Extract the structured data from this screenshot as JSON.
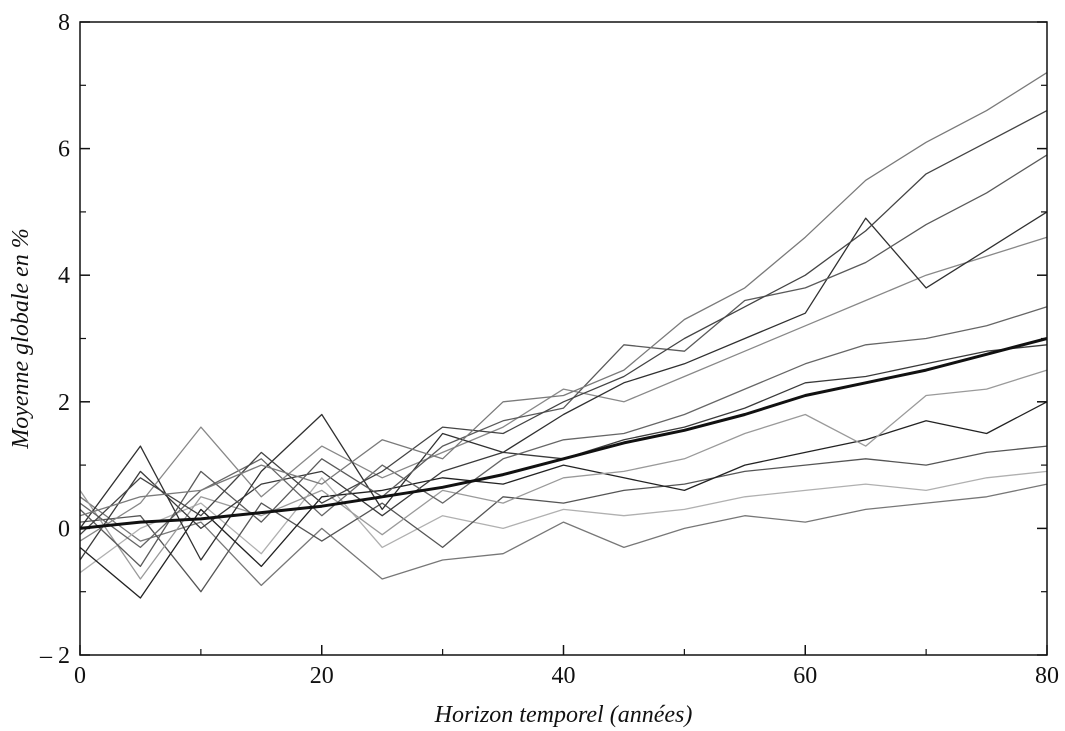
{
  "chart_data": {
    "type": "line",
    "title": "",
    "xlabel": "Horizon temporel (années)",
    "ylabel": "Moyenne globale en %",
    "xlim": [
      0,
      80
    ],
    "ylim": [
      -2,
      8
    ],
    "grid": false,
    "legend": "none",
    "x_ticks": [
      {
        "value": 0,
        "label": "0"
      },
      {
        "value": 20,
        "label": "20"
      },
      {
        "value": 40,
        "label": "40"
      },
      {
        "value": 60,
        "label": "60"
      },
      {
        "value": 80,
        "label": "80"
      }
    ],
    "y_ticks": [
      {
        "value": -2,
        "label": "– 2"
      },
      {
        "value": 0,
        "label": "0"
      },
      {
        "value": 2,
        "label": "2"
      },
      {
        "value": 4,
        "label": "4"
      },
      {
        "value": 6,
        "label": "6"
      },
      {
        "value": 8,
        "label": "8"
      }
    ],
    "x": [
      0,
      5,
      10,
      15,
      20,
      25,
      30,
      35,
      40,
      45,
      50,
      55,
      60,
      65,
      70,
      75,
      80
    ],
    "series": [
      {
        "color": "#111111",
        "width": 3,
        "values": [
          0.0,
          0.1,
          0.15,
          0.25,
          0.35,
          0.5,
          0.65,
          0.85,
          1.1,
          1.35,
          1.55,
          1.8,
          2.1,
          2.3,
          2.5,
          2.75,
          3.0
        ]
      },
      {
        "color": "#7a7a7a",
        "width": 1.3,
        "values": [
          0.2,
          0.5,
          0.6,
          1.0,
          0.7,
          1.4,
          1.1,
          2.0,
          2.1,
          2.5,
          3.3,
          3.8,
          4.6,
          5.5,
          6.1,
          6.6,
          7.2
        ]
      },
      {
        "color": "#444444",
        "width": 1.3,
        "values": [
          -0.1,
          0.8,
          0.2,
          1.2,
          0.4,
          0.9,
          1.6,
          1.5,
          2.0,
          2.4,
          3.0,
          3.5,
          4.0,
          4.7,
          5.6,
          6.1,
          6.6
        ]
      },
      {
        "color": "#5a5a5a",
        "width": 1.3,
        "values": [
          0.3,
          -0.6,
          0.9,
          0.1,
          1.1,
          0.5,
          1.3,
          1.7,
          1.9,
          2.9,
          2.8,
          3.6,
          3.8,
          4.2,
          4.8,
          5.3,
          5.9
        ]
      },
      {
        "color": "#303030",
        "width": 1.3,
        "values": [
          0.0,
          1.3,
          -0.5,
          0.9,
          1.8,
          0.3,
          1.5,
          1.2,
          1.8,
          2.3,
          2.6,
          3.0,
          3.4,
          4.9,
          3.8,
          4.4,
          5.0
        ]
      },
      {
        "color": "#888888",
        "width": 1.3,
        "values": [
          -0.2,
          0.4,
          1.6,
          0.5,
          1.3,
          0.8,
          1.2,
          1.6,
          2.2,
          2.0,
          2.4,
          2.8,
          3.2,
          3.6,
          4.0,
          4.3,
          4.6
        ]
      },
      {
        "color": "#666666",
        "width": 1.3,
        "values": [
          0.4,
          -0.3,
          0.6,
          1.1,
          0.2,
          1.0,
          0.4,
          1.1,
          1.4,
          1.5,
          1.8,
          2.2,
          2.6,
          2.9,
          3.0,
          3.2,
          3.5
        ]
      },
      {
        "color": "#3a3a3a",
        "width": 1.3,
        "values": [
          -0.5,
          0.9,
          0.0,
          0.7,
          0.9,
          0.2,
          0.9,
          1.2,
          1.1,
          1.4,
          1.6,
          1.9,
          2.3,
          2.4,
          2.6,
          2.8,
          2.9
        ]
      },
      {
        "color": "#9a9a9a",
        "width": 1.3,
        "values": [
          0.6,
          -0.8,
          0.5,
          0.2,
          0.6,
          -0.1,
          0.6,
          0.4,
          0.8,
          0.9,
          1.1,
          1.5,
          1.8,
          1.3,
          2.1,
          2.2,
          2.5
        ]
      },
      {
        "color": "#222222",
        "width": 1.3,
        "values": [
          -0.3,
          -1.1,
          0.3,
          -0.6,
          0.5,
          0.6,
          0.8,
          0.7,
          1.0,
          0.8,
          0.6,
          1.0,
          1.2,
          1.4,
          1.7,
          1.5,
          2.0
        ]
      },
      {
        "color": "#555555",
        "width": 1.3,
        "values": [
          0.1,
          0.2,
          -1.0,
          0.4,
          -0.2,
          0.4,
          -0.3,
          0.5,
          0.4,
          0.6,
          0.7,
          0.9,
          1.0,
          1.1,
          1.0,
          1.2,
          1.3
        ]
      },
      {
        "color": "#b0b0b0",
        "width": 1.3,
        "values": [
          -0.7,
          0.0,
          0.4,
          -0.4,
          0.8,
          -0.3,
          0.2,
          0.0,
          0.3,
          0.2,
          0.3,
          0.5,
          0.6,
          0.7,
          0.6,
          0.8,
          0.9
        ]
      },
      {
        "color": "#777777",
        "width": 1.3,
        "values": [
          0.5,
          -0.2,
          0.1,
          -0.9,
          0.0,
          -0.8,
          -0.5,
          -0.4,
          0.1,
          -0.3,
          0.0,
          0.2,
          0.1,
          0.3,
          0.4,
          0.5,
          0.7
        ]
      }
    ]
  }
}
